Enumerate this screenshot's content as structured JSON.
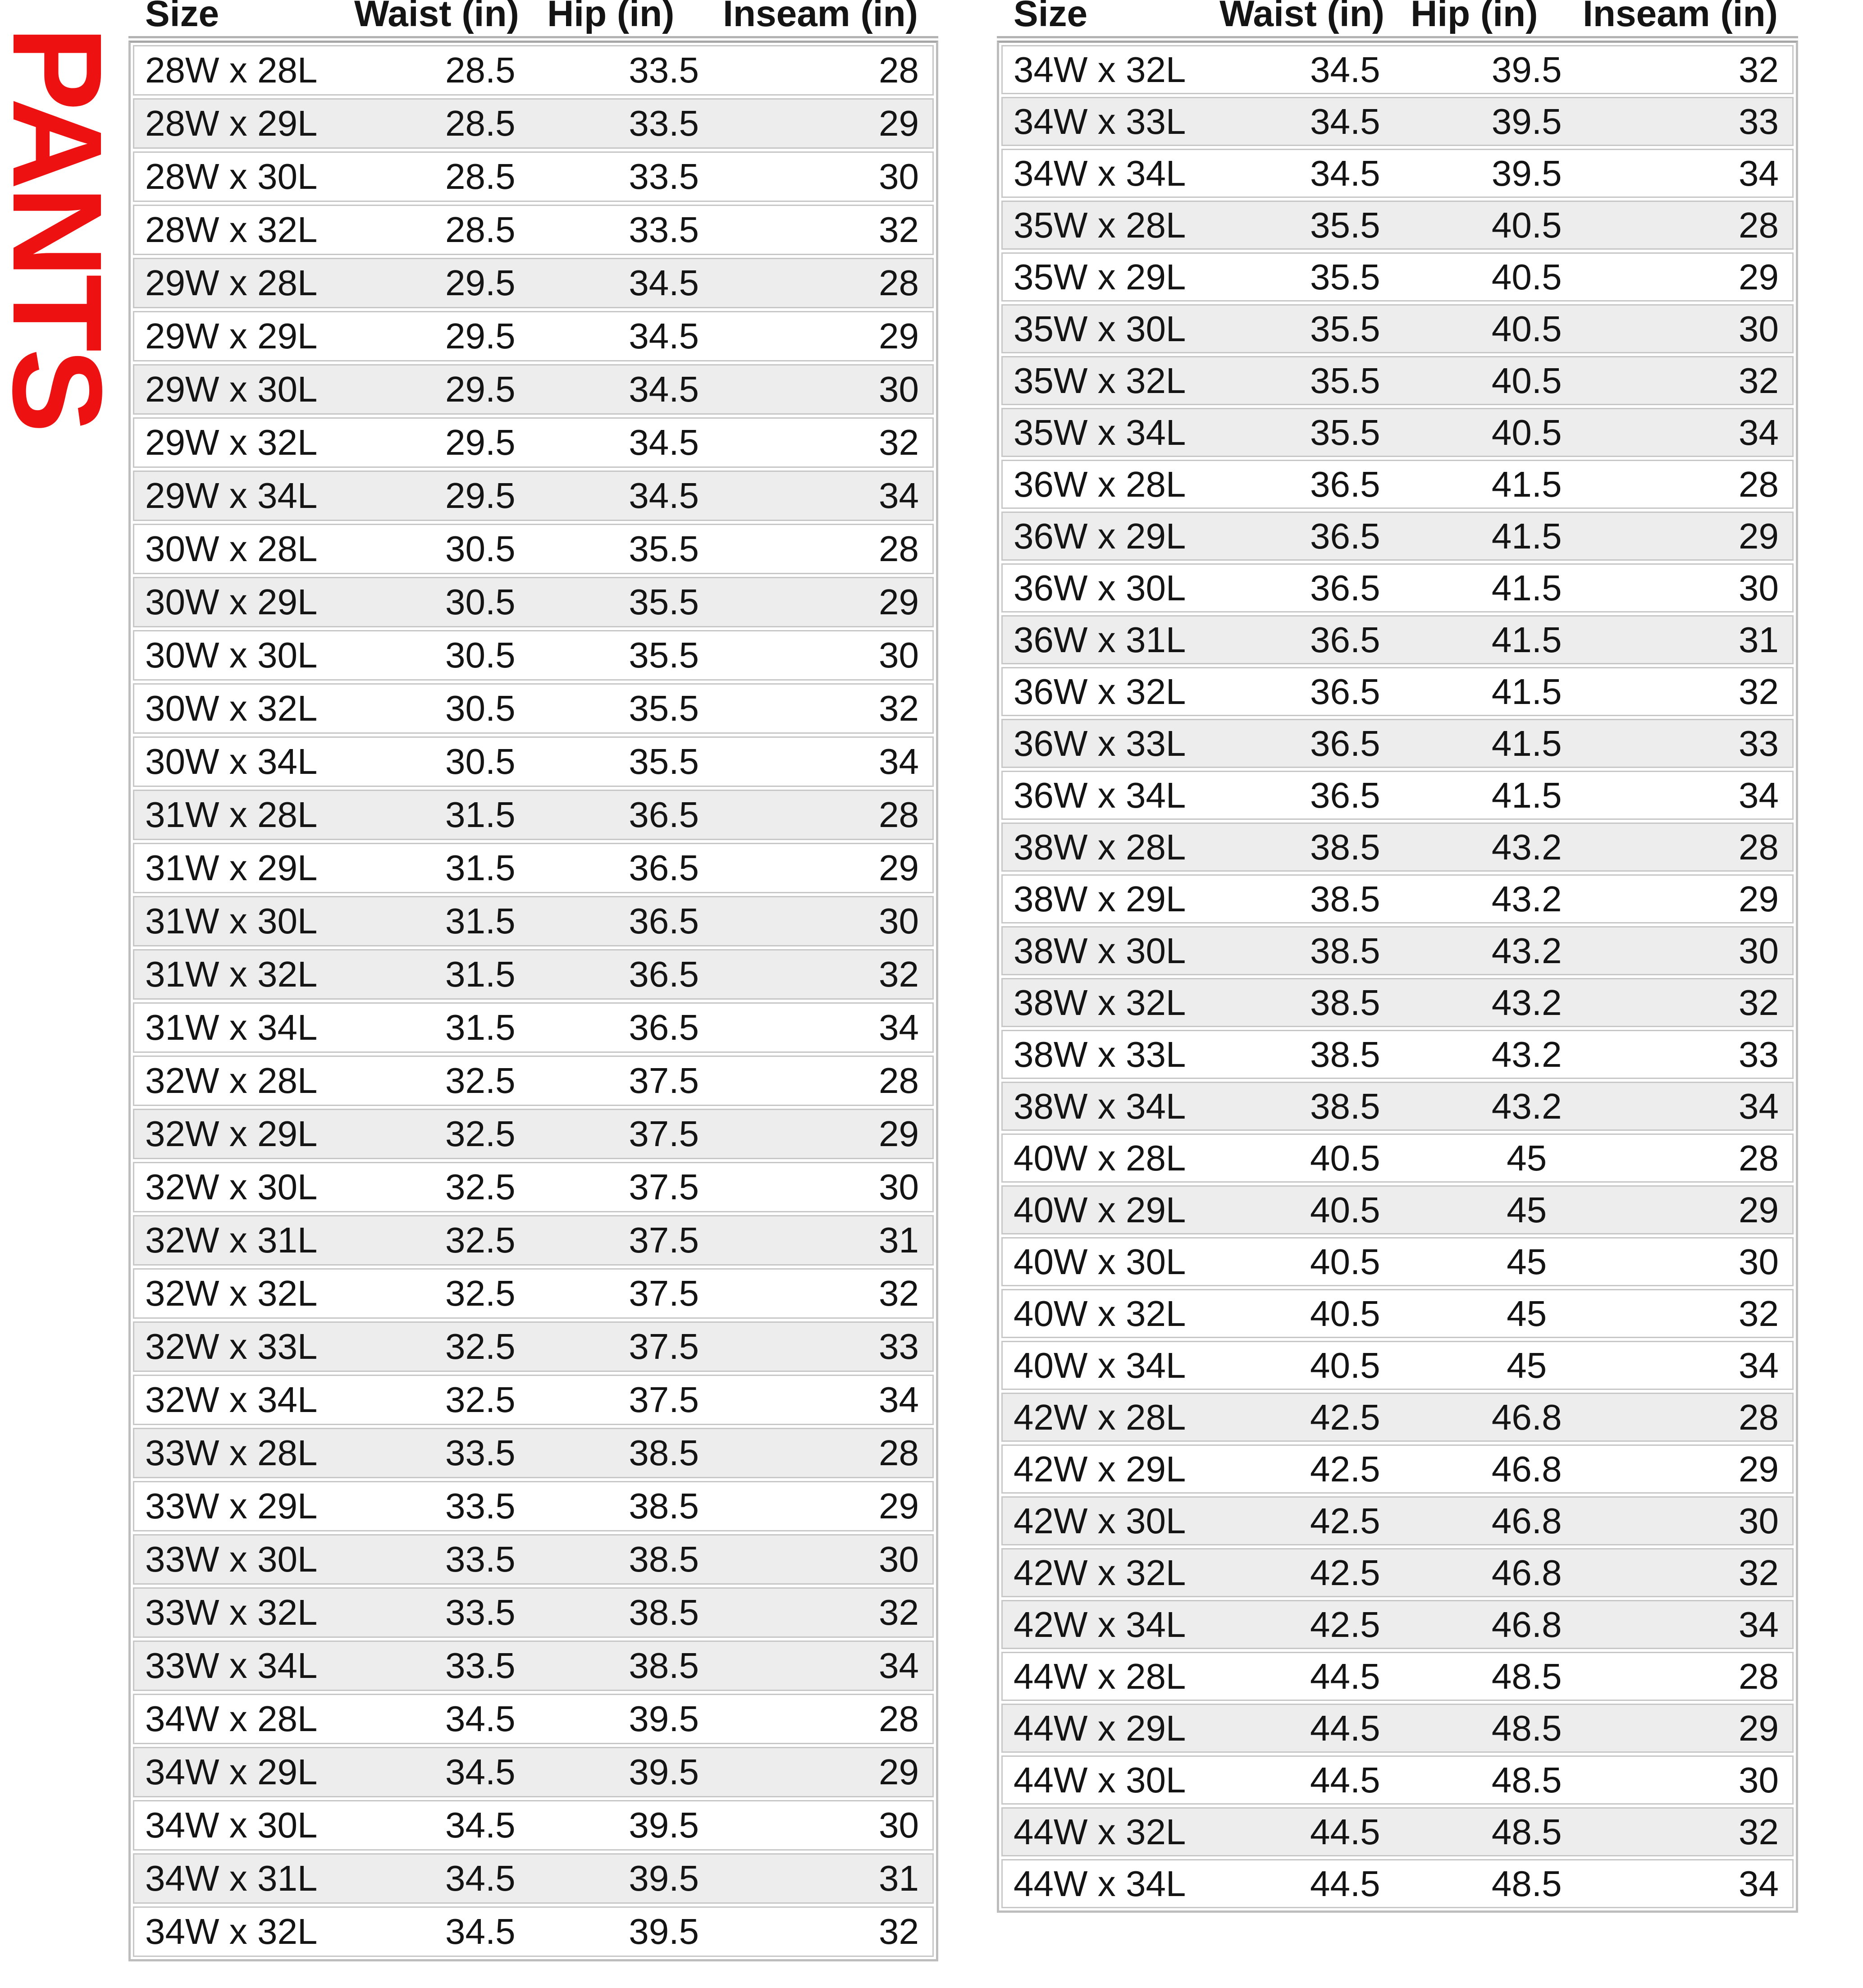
{
  "title": {
    "text": "PANTS",
    "color": "#ee1111"
  },
  "columns": {
    "size": "Size",
    "waist": "Waist (in)",
    "hip": "Hip (in)",
    "inseam": "Inseam (in)"
  },
  "left_table": {
    "rows": [
      {
        "size": "28W x 28L",
        "waist": "28.5",
        "hip": "33.5",
        "inseam": "28",
        "shaded": false
      },
      {
        "size": "28W x 29L",
        "waist": "28.5",
        "hip": "33.5",
        "inseam": "29",
        "shaded": true
      },
      {
        "size": "28W x 30L",
        "waist": "28.5",
        "hip": "33.5",
        "inseam": "30",
        "shaded": false
      },
      {
        "size": "28W x 32L",
        "waist": "28.5",
        "hip": "33.5",
        "inseam": "32",
        "shaded": false
      },
      {
        "size": "29W x 28L",
        "waist": "29.5",
        "hip": "34.5",
        "inseam": "28",
        "shaded": true
      },
      {
        "size": "29W x 29L",
        "waist": "29.5",
        "hip": "34.5",
        "inseam": "29",
        "shaded": false
      },
      {
        "size": "29W x 30L",
        "waist": "29.5",
        "hip": "34.5",
        "inseam": "30",
        "shaded": true
      },
      {
        "size": "29W x 32L",
        "waist": "29.5",
        "hip": "34.5",
        "inseam": "32",
        "shaded": false
      },
      {
        "size": "29W x 34L",
        "waist": "29.5",
        "hip": "34.5",
        "inseam": "34",
        "shaded": true
      },
      {
        "size": "30W x 28L",
        "waist": "30.5",
        "hip": "35.5",
        "inseam": "28",
        "shaded": false
      },
      {
        "size": "30W x 29L",
        "waist": "30.5",
        "hip": "35.5",
        "inseam": "29",
        "shaded": true
      },
      {
        "size": "30W x 30L",
        "waist": "30.5",
        "hip": "35.5",
        "inseam": "30",
        "shaded": false
      },
      {
        "size": "30W x 32L",
        "waist": "30.5",
        "hip": "35.5",
        "inseam": "32",
        "shaded": false
      },
      {
        "size": "30W x 34L",
        "waist": "30.5",
        "hip": "35.5",
        "inseam": "34",
        "shaded": false
      },
      {
        "size": "31W x 28L",
        "waist": "31.5",
        "hip": "36.5",
        "inseam": "28",
        "shaded": true
      },
      {
        "size": "31W x 29L",
        "waist": "31.5",
        "hip": "36.5",
        "inseam": "29",
        "shaded": false
      },
      {
        "size": "31W x 30L",
        "waist": "31.5",
        "hip": "36.5",
        "inseam": "30",
        "shaded": true
      },
      {
        "size": "31W x 32L",
        "waist": "31.5",
        "hip": "36.5",
        "inseam": "32",
        "shaded": true
      },
      {
        "size": "31W x 34L",
        "waist": "31.5",
        "hip": "36.5",
        "inseam": "34",
        "shaded": false
      },
      {
        "size": "32W x 28L",
        "waist": "32.5",
        "hip": "37.5",
        "inseam": "28",
        "shaded": false
      },
      {
        "size": "32W x 29L",
        "waist": "32.5",
        "hip": "37.5",
        "inseam": "29",
        "shaded": true
      },
      {
        "size": "32W x 30L",
        "waist": "32.5",
        "hip": "37.5",
        "inseam": "30",
        "shaded": false
      },
      {
        "size": "32W x 31L",
        "waist": "32.5",
        "hip": "37.5",
        "inseam": "31",
        "shaded": true
      },
      {
        "size": "32W x 32L",
        "waist": "32.5",
        "hip": "37.5",
        "inseam": "32",
        "shaded": false
      },
      {
        "size": "32W x 33L",
        "waist": "32.5",
        "hip": "37.5",
        "inseam": "33",
        "shaded": true
      },
      {
        "size": "32W x 34L",
        "waist": "32.5",
        "hip": "37.5",
        "inseam": "34",
        "shaded": false
      },
      {
        "size": "33W x 28L",
        "waist": "33.5",
        "hip": "38.5",
        "inseam": "28",
        "shaded": true
      },
      {
        "size": "33W x 29L",
        "waist": "33.5",
        "hip": "38.5",
        "inseam": "29",
        "shaded": false
      },
      {
        "size": "33W x 30L",
        "waist": "33.5",
        "hip": "38.5",
        "inseam": "30",
        "shaded": true
      },
      {
        "size": "33W x 32L",
        "waist": "33.5",
        "hip": "38.5",
        "inseam": "32",
        "shaded": true
      },
      {
        "size": "33W x 34L",
        "waist": "33.5",
        "hip": "38.5",
        "inseam": "34",
        "shaded": true
      },
      {
        "size": "34W x 28L",
        "waist": "34.5",
        "hip": "39.5",
        "inseam": "28",
        "shaded": false
      },
      {
        "size": "34W x 29L",
        "waist": "34.5",
        "hip": "39.5",
        "inseam": "29",
        "shaded": true
      },
      {
        "size": "34W x 30L",
        "waist": "34.5",
        "hip": "39.5",
        "inseam": "30",
        "shaded": false
      },
      {
        "size": "34W x 31L",
        "waist": "34.5",
        "hip": "39.5",
        "inseam": "31",
        "shaded": true
      },
      {
        "size": "34W x 32L",
        "waist": "34.5",
        "hip": "39.5",
        "inseam": "32",
        "shaded": false
      }
    ]
  },
  "right_table": {
    "rows": [
      {
        "size": "34W x 32L",
        "waist": "34.5",
        "hip": "39.5",
        "inseam": "32",
        "shaded": false
      },
      {
        "size": "34W x 33L",
        "waist": "34.5",
        "hip": "39.5",
        "inseam": "33",
        "shaded": true
      },
      {
        "size": "34W x 34L",
        "waist": "34.5",
        "hip": "39.5",
        "inseam": "34",
        "shaded": false
      },
      {
        "size": "35W x 28L",
        "waist": "35.5",
        "hip": "40.5",
        "inseam": "28",
        "shaded": true
      },
      {
        "size": "35W x 29L",
        "waist": "35.5",
        "hip": "40.5",
        "inseam": "29",
        "shaded": false
      },
      {
        "size": "35W x 30L",
        "waist": "35.5",
        "hip": "40.5",
        "inseam": "30",
        "shaded": true
      },
      {
        "size": "35W x 32L",
        "waist": "35.5",
        "hip": "40.5",
        "inseam": "32",
        "shaded": true
      },
      {
        "size": "35W x 34L",
        "waist": "35.5",
        "hip": "40.5",
        "inseam": "34",
        "shaded": true
      },
      {
        "size": "36W x 28L",
        "waist": "36.5",
        "hip": "41.5",
        "inseam": "28",
        "shaded": false
      },
      {
        "size": "36W x 29L",
        "waist": "36.5",
        "hip": "41.5",
        "inseam": "29",
        "shaded": true
      },
      {
        "size": "36W x 30L",
        "waist": "36.5",
        "hip": "41.5",
        "inseam": "30",
        "shaded": false
      },
      {
        "size": "36W x 31L",
        "waist": "36.5",
        "hip": "41.5",
        "inseam": "31",
        "shaded": true
      },
      {
        "size": "36W x 32L",
        "waist": "36.5",
        "hip": "41.5",
        "inseam": "32",
        "shaded": false
      },
      {
        "size": "36W x 33L",
        "waist": "36.5",
        "hip": "41.5",
        "inseam": "33",
        "shaded": true
      },
      {
        "size": "36W x 34L",
        "waist": "36.5",
        "hip": "41.5",
        "inseam": "34",
        "shaded": false
      },
      {
        "size": "38W x 28L",
        "waist": "38.5",
        "hip": "43.2",
        "inseam": "28",
        "shaded": true
      },
      {
        "size": "38W x 29L",
        "waist": "38.5",
        "hip": "43.2",
        "inseam": "29",
        "shaded": false
      },
      {
        "size": "38W x 30L",
        "waist": "38.5",
        "hip": "43.2",
        "inseam": "30",
        "shaded": true
      },
      {
        "size": "38W x 32L",
        "waist": "38.5",
        "hip": "43.2",
        "inseam": "32",
        "shaded": true
      },
      {
        "size": "38W x 33L",
        "waist": "38.5",
        "hip": "43.2",
        "inseam": "33",
        "shaded": false
      },
      {
        "size": "38W x 34L",
        "waist": "38.5",
        "hip": "43.2",
        "inseam": "34",
        "shaded": true
      },
      {
        "size": "40W x 28L",
        "waist": "40.5",
        "hip": "45",
        "inseam": "28",
        "shaded": false
      },
      {
        "size": "40W x 29L",
        "waist": "40.5",
        "hip": "45",
        "inseam": "29",
        "shaded": true
      },
      {
        "size": "40W x 30L",
        "waist": "40.5",
        "hip": "45",
        "inseam": "30",
        "shaded": false
      },
      {
        "size": "40W x 32L",
        "waist": "40.5",
        "hip": "45",
        "inseam": "32",
        "shaded": false
      },
      {
        "size": "40W x 34L",
        "waist": "40.5",
        "hip": "45",
        "inseam": "34",
        "shaded": false
      },
      {
        "size": "42W x 28L",
        "waist": "42.5",
        "hip": "46.8",
        "inseam": "28",
        "shaded": true
      },
      {
        "size": "42W x 29L",
        "waist": "42.5",
        "hip": "46.8",
        "inseam": "29",
        "shaded": false
      },
      {
        "size": "42W x 30L",
        "waist": "42.5",
        "hip": "46.8",
        "inseam": "30",
        "shaded": true
      },
      {
        "size": "42W x 32L",
        "waist": "42.5",
        "hip": "46.8",
        "inseam": "32",
        "shaded": true
      },
      {
        "size": "42W x 34L",
        "waist": "42.5",
        "hip": "46.8",
        "inseam": "34",
        "shaded": true
      },
      {
        "size": "44W x 28L",
        "waist": "44.5",
        "hip": "48.5",
        "inseam": "28",
        "shaded": false
      },
      {
        "size": "44W x 29L",
        "waist": "44.5",
        "hip": "48.5",
        "inseam": "29",
        "shaded": true
      },
      {
        "size": "44W x 30L",
        "waist": "44.5",
        "hip": "48.5",
        "inseam": "30",
        "shaded": false
      },
      {
        "size": "44W x 32L",
        "waist": "44.5",
        "hip": "48.5",
        "inseam": "32",
        "shaded": true
      },
      {
        "size": "44W x 34L",
        "waist": "44.5",
        "hip": "48.5",
        "inseam": "34",
        "shaded": false
      }
    ]
  }
}
